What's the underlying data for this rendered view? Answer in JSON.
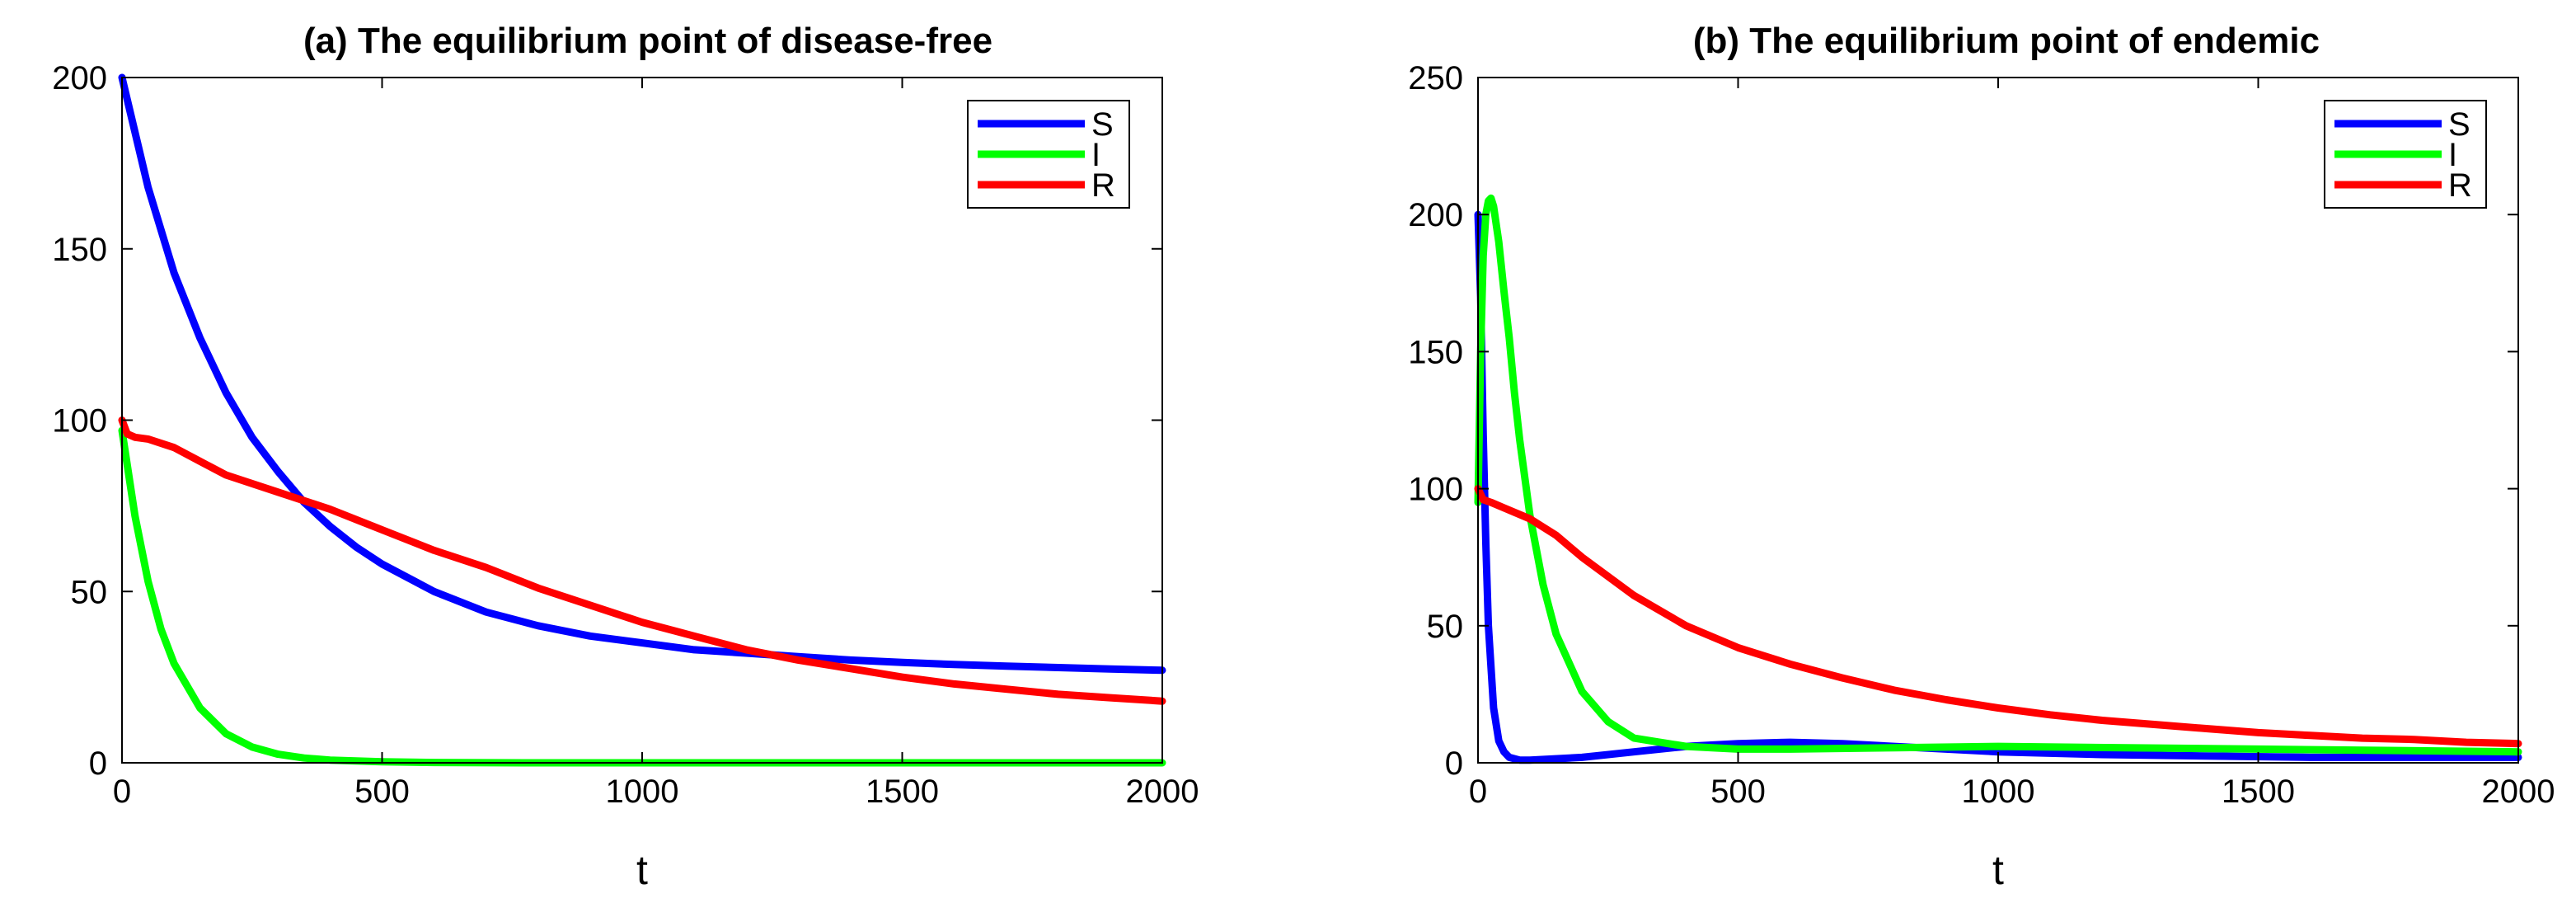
{
  "chart_data": [
    {
      "type": "line",
      "title": "(a) The equilibrium point of disease-free",
      "xlabel": "t",
      "ylabel": "",
      "xlim": [
        0,
        2000
      ],
      "ylim": [
        0,
        200
      ],
      "xticks": [
        0,
        500,
        1000,
        1500,
        2000
      ],
      "yticks": [
        0,
        50,
        100,
        150,
        200
      ],
      "legend_position": "top-right",
      "series": [
        {
          "name": "S",
          "color": "#0000ff",
          "x": [
            0,
            50,
            100,
            150,
            200,
            250,
            300,
            350,
            400,
            450,
            500,
            600,
            700,
            800,
            900,
            1000,
            1100,
            1200,
            1300,
            1400,
            1500,
            1600,
            1700,
            1800,
            1900,
            2000
          ],
          "y": [
            200,
            168,
            143,
            124,
            108,
            95,
            85,
            76,
            69,
            63,
            58,
            50,
            44,
            40,
            37,
            35,
            33,
            32,
            31,
            30,
            29.3,
            28.7,
            28.2,
            27.8,
            27.4,
            27
          ]
        },
        {
          "name": "I",
          "color": "#00ff00",
          "x": [
            0,
            25,
            50,
            75,
            100,
            150,
            200,
            250,
            300,
            350,
            400,
            500,
            600,
            800,
            1000,
            1500,
            2000
          ],
          "y": [
            97,
            72,
            53,
            39,
            29,
            16,
            8.5,
            4.6,
            2.5,
            1.4,
            0.8,
            0.3,
            0.1,
            0,
            0,
            0,
            0
          ]
        },
        {
          "name": "R",
          "color": "#ff0000",
          "x": [
            0,
            10,
            25,
            50,
            100,
            150,
            200,
            300,
            400,
            500,
            600,
            700,
            800,
            900,
            1000,
            1100,
            1200,
            1300,
            1400,
            1500,
            1600,
            1700,
            1800,
            1900,
            2000
          ],
          "y": [
            100,
            96,
            95,
            94.5,
            92,
            88,
            84,
            79,
            74,
            68,
            62,
            57,
            51,
            46,
            41,
            37,
            33,
            30,
            27.5,
            25,
            23,
            21.5,
            20,
            19,
            18
          ]
        }
      ]
    },
    {
      "type": "line",
      "title": "(b) The equilibrium point of endemic",
      "xlabel": "t",
      "ylabel": "",
      "xlim": [
        0,
        2000
      ],
      "ylim": [
        0,
        250
      ],
      "xticks": [
        0,
        500,
        1000,
        1500,
        2000
      ],
      "yticks": [
        0,
        50,
        100,
        150,
        200,
        250
      ],
      "legend_position": "top-right",
      "series": [
        {
          "name": "S",
          "color": "#0000ff",
          "x": [
            0,
            5,
            10,
            15,
            20,
            30,
            40,
            50,
            60,
            80,
            100,
            200,
            300,
            400,
            500,
            600,
            700,
            800,
            900,
            1000,
            1200,
            1400,
            1600,
            1800,
            2000
          ],
          "y": [
            200,
            170,
            120,
            80,
            50,
            20,
            8,
            4,
            2,
            1,
            1,
            2,
            4,
            6,
            7,
            7.5,
            7,
            6,
            5,
            4,
            3,
            2.5,
            2,
            2,
            2
          ]
        },
        {
          "name": "I",
          "color": "#00ff00",
          "x": [
            0,
            5,
            10,
            15,
            20,
            25,
            30,
            40,
            50,
            60,
            70,
            80,
            100,
            125,
            150,
            200,
            250,
            300,
            400,
            500,
            600,
            800,
            1000,
            1500,
            2000
          ],
          "y": [
            95,
            150,
            185,
            200,
            205,
            206,
            203,
            190,
            172,
            155,
            135,
            118,
            90,
            65,
            47,
            26,
            15,
            9,
            6,
            5,
            5,
            5.5,
            6,
            5,
            4
          ]
        },
        {
          "name": "R",
          "color": "#ff0000",
          "x": [
            0,
            10,
            25,
            50,
            100,
            150,
            200,
            300,
            400,
            500,
            600,
            700,
            800,
            900,
            1000,
            1100,
            1200,
            1300,
            1400,
            1500,
            1600,
            1700,
            1800,
            1900,
            2000
          ],
          "y": [
            100,
            96,
            95,
            93,
            89,
            83,
            75,
            61,
            50,
            42,
            36,
            31,
            26.5,
            23,
            20,
            17.5,
            15.5,
            14,
            12.5,
            11,
            10,
            9,
            8.5,
            7.5,
            7
          ]
        }
      ]
    }
  ]
}
